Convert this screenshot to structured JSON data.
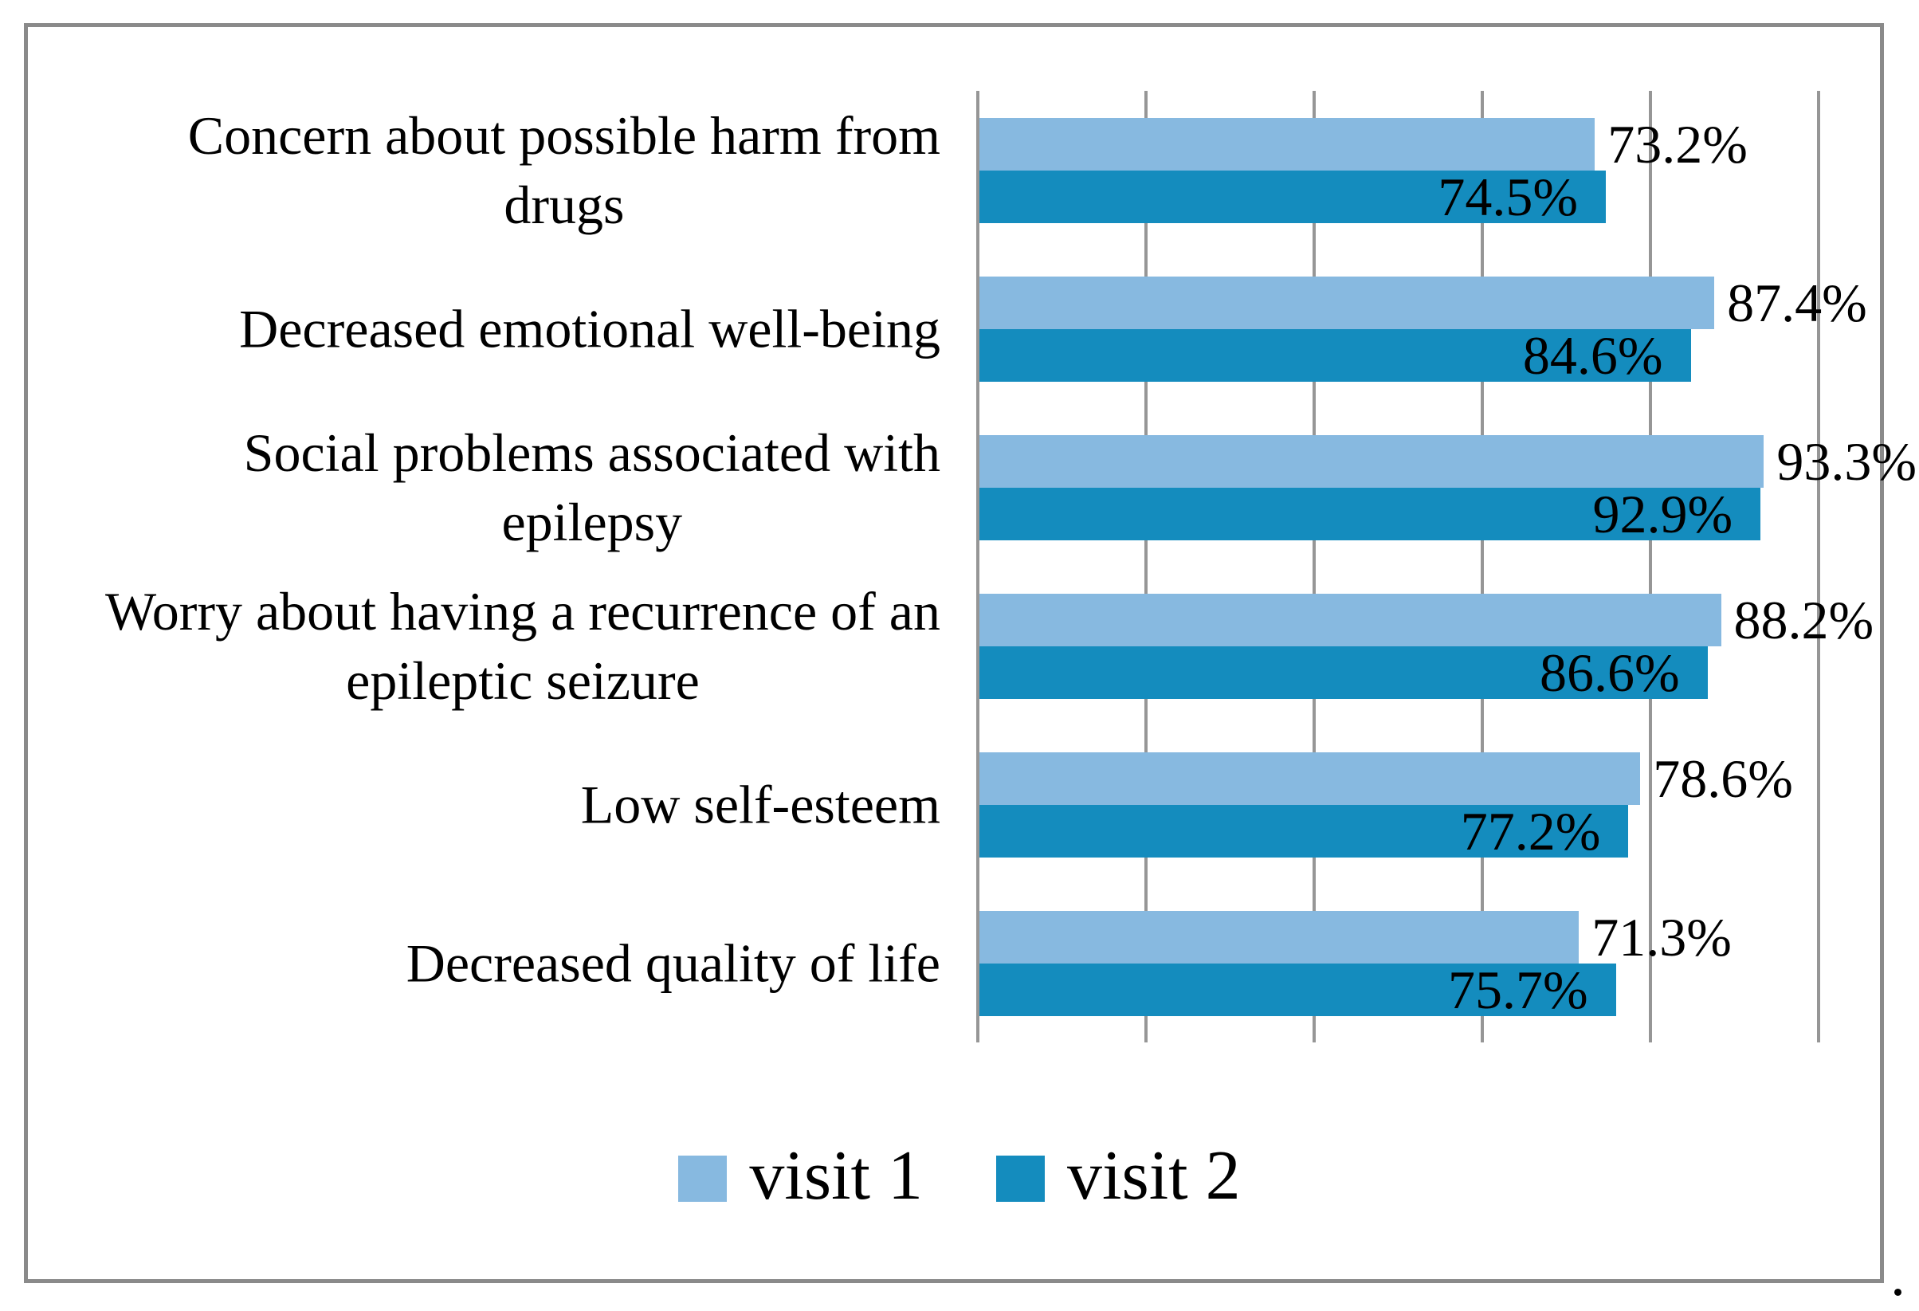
{
  "figure": {
    "background": "#FFFFFF",
    "border_color": "#8A8A8A",
    "caption_period": "."
  },
  "chart_data": {
    "type": "bar",
    "orientation": "horizontal",
    "title": "",
    "xlabel": "",
    "ylabel": "",
    "xlim": [
      0,
      100
    ],
    "grid": true,
    "gridline_interval_pct": 20,
    "gridline_color": "#969696",
    "legend_position": "bottom",
    "value_suffix": "%",
    "categories": [
      {
        "label": "Concern about possible harm from drugs",
        "lines": [
          "Concern about possible harm from",
          "drugs"
        ]
      },
      {
        "label": "Decreased emotional well-being",
        "lines": [
          "Decreased emotional well-being"
        ]
      },
      {
        "label": "Social problems associated with epilepsy",
        "lines": [
          "Social problems associated with",
          "epilepsy"
        ]
      },
      {
        "label": "Worry about having a recurrence of an epileptic seizure",
        "lines": [
          "Worry about having a recurrence of an",
          "epileptic seizure"
        ]
      },
      {
        "label": "Low self-esteem",
        "lines": [
          "Low self-esteem"
        ]
      },
      {
        "label": "Decreased quality of life",
        "lines": [
          "Decreased quality of life"
        ]
      }
    ],
    "series": [
      {
        "name": "visit 1",
        "color": "#87B9E0",
        "label_placement": "outside-end",
        "values": [
          73.2,
          87.4,
          93.3,
          88.2,
          78.6,
          71.3
        ],
        "value_labels": [
          "73.2%",
          "87.4%",
          "93.3%",
          "88.2%",
          "78.6%",
          "71.3%"
        ]
      },
      {
        "name": "visit 2",
        "color": "#148CBE",
        "label_placement": "inside-end",
        "values": [
          74.5,
          84.6,
          92.9,
          86.6,
          77.2,
          75.7
        ],
        "value_labels": [
          "74.5%",
          "84.6%",
          "92.9%",
          "86.6%",
          "77.2%",
          "75.7%"
        ]
      }
    ]
  }
}
